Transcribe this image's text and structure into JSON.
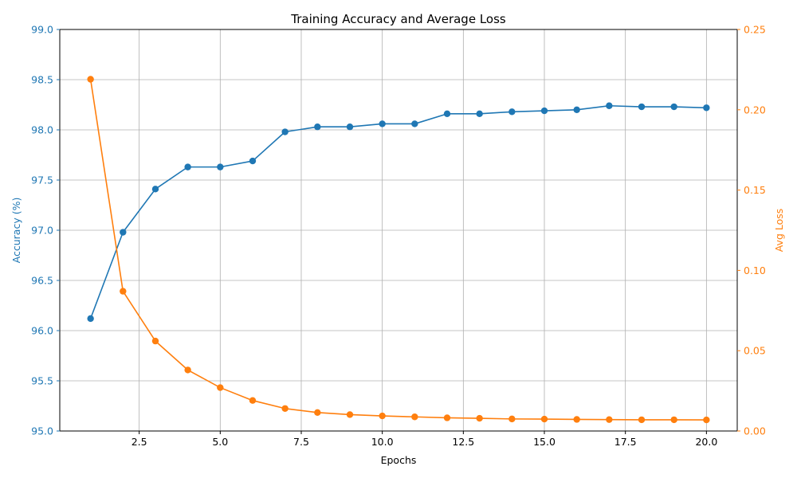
{
  "chart_data": {
    "type": "line",
    "title": "Training Accuracy and Average Loss",
    "xlabel": "Epochs",
    "y1label": "Accuracy (%)",
    "y2label": "Avg Loss",
    "x": [
      1,
      2,
      3,
      4,
      5,
      6,
      7,
      8,
      9,
      10,
      11,
      12,
      13,
      14,
      15,
      16,
      17,
      18,
      19,
      20
    ],
    "xlim": [
      0.05,
      20.95
    ],
    "x_ticks": [
      2.5,
      5.0,
      7.5,
      10.0,
      12.5,
      15.0,
      17.5,
      20.0
    ],
    "x_tick_labels": [
      "2.5",
      "5.0",
      "7.5",
      "10.0",
      "12.5",
      "15.0",
      "17.5",
      "20.0"
    ],
    "y1lim": [
      95.0,
      99.0
    ],
    "y1_ticks": [
      95.0,
      95.5,
      96.0,
      96.5,
      97.0,
      97.5,
      98.0,
      98.5,
      99.0
    ],
    "y1_tick_labels": [
      "95.0",
      "95.5",
      "96.0",
      "96.5",
      "97.0",
      "97.5",
      "98.0",
      "98.5",
      "99.0"
    ],
    "y2lim": [
      0.0,
      0.25
    ],
    "y2_ticks": [
      0.0,
      0.05,
      0.1,
      0.15,
      0.2,
      0.25
    ],
    "y2_tick_labels": [
      "0.00",
      "0.05",
      "0.10",
      "0.15",
      "0.20",
      "0.25"
    ],
    "grid": true,
    "series": [
      {
        "axis": "left",
        "color": "#1f77b4",
        "values": [
          96.12,
          96.98,
          97.41,
          97.63,
          97.63,
          97.69,
          97.98,
          98.03,
          98.03,
          98.06,
          98.06,
          98.16,
          98.16,
          98.18,
          98.19,
          98.2,
          98.24,
          98.23,
          98.23,
          98.22
        ]
      },
      {
        "axis": "right",
        "color": "#ff7f0e",
        "values": [
          0.219,
          0.087,
          0.056,
          0.038,
          0.027,
          0.019,
          0.014,
          0.0115,
          0.0102,
          0.0094,
          0.0088,
          0.0082,
          0.0079,
          0.0075,
          0.0074,
          0.0072,
          0.0071,
          0.007,
          0.007,
          0.0069
        ]
      }
    ]
  }
}
